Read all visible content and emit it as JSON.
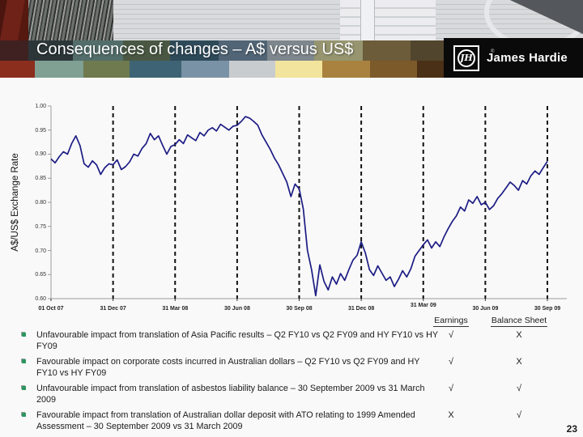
{
  "header": {
    "title": "Consequences of changes – A$ versus US$",
    "logo_text": "James Hardie",
    "logo_monogram": "JH",
    "registered_mark": "®",
    "tile_palette": [
      "#8c2e1e",
      "#7fa092",
      "#6f7a4f",
      "#3e6374",
      "#7a92a5",
      "#c9ccce",
      "#f2e49c",
      "#a9823f",
      "#7d5a2a",
      "#4a3016"
    ]
  },
  "chart_data": {
    "type": "line",
    "title": "",
    "xlabel": "",
    "ylabel": "A$/US$ Exchange Rate",
    "ylim": [
      0.6,
      1.0
    ],
    "y_ticks": [
      "1.00",
      "0.95",
      "0.90",
      "0.85",
      "0.80",
      "0.75",
      "0.70",
      "0.65",
      "0.60"
    ],
    "x_ticks": [
      "01 Oct 07",
      "31 Dec 07",
      "31 Mar 08",
      "30 Jun 08",
      "30 Sep 08",
      "31 Dec 08",
      "31 Mar 09",
      "30 Jun 09",
      "30 Sep 09"
    ],
    "grid": "dashed vertical lines at each quarter",
    "legend_position": "none",
    "series": [
      {
        "name": "A$/US$ Exchange Rate",
        "color": "#1c1c85",
        "values": [
          0.89,
          0.882,
          0.895,
          0.905,
          0.9,
          0.922,
          0.938,
          0.918,
          0.88,
          0.873,
          0.886,
          0.878,
          0.858,
          0.872,
          0.88,
          0.878,
          0.888,
          0.868,
          0.874,
          0.884,
          0.9,
          0.896,
          0.912,
          0.922,
          0.943,
          0.93,
          0.938,
          0.918,
          0.9,
          0.916,
          0.92,
          0.93,
          0.922,
          0.94,
          0.934,
          0.928,
          0.945,
          0.938,
          0.95,
          0.955,
          0.948,
          0.962,
          0.956,
          0.95,
          0.958,
          0.96,
          0.968,
          0.978,
          0.975,
          0.968,
          0.96,
          0.94,
          0.925,
          0.91,
          0.892,
          0.878,
          0.86,
          0.842,
          0.812,
          0.838,
          0.828,
          0.786,
          0.7,
          0.66,
          0.606,
          0.67,
          0.636,
          0.618,
          0.645,
          0.63,
          0.652,
          0.638,
          0.66,
          0.68,
          0.69,
          0.718,
          0.695,
          0.66,
          0.648,
          0.668,
          0.653,
          0.638,
          0.645,
          0.625,
          0.64,
          0.658,
          0.645,
          0.662,
          0.688,
          0.7,
          0.712,
          0.722,
          0.705,
          0.718,
          0.708,
          0.728,
          0.745,
          0.76,
          0.772,
          0.79,
          0.782,
          0.805,
          0.798,
          0.812,
          0.795,
          0.8,
          0.785,
          0.793,
          0.808,
          0.818,
          0.83,
          0.842,
          0.835,
          0.825,
          0.845,
          0.838,
          0.855,
          0.865,
          0.858,
          0.872,
          0.885
        ]
      }
    ]
  },
  "impact_table": {
    "columns": [
      "Earnings",
      "Balance Sheet"
    ],
    "rows": [
      {
        "text": "Unfavourable impact from translation of Asia Pacific results – Q2 FY10 vs Q2 FY09 and HY FY10 vs HY FY09",
        "earnings": "√",
        "balance": "X"
      },
      {
        "text": "Favourable impact on corporate costs incurred in Australian dollars – Q2 FY10 vs Q2 FY09 and HY FY10 vs HY FY09",
        "earnings": "√",
        "balance": "X"
      },
      {
        "text": "Unfavourable impact from translation of asbestos liability balance – 30 September 2009 vs 31 March 2009",
        "earnings": "√",
        "balance": "√"
      },
      {
        "text": "Favourable impact from translation of Australian dollar deposit with ATO relating to 1999 Amended Assessment – 30 September 2009 vs 31 March 2009",
        "earnings": "X",
        "balance": "√"
      }
    ]
  },
  "page_number": "23"
}
